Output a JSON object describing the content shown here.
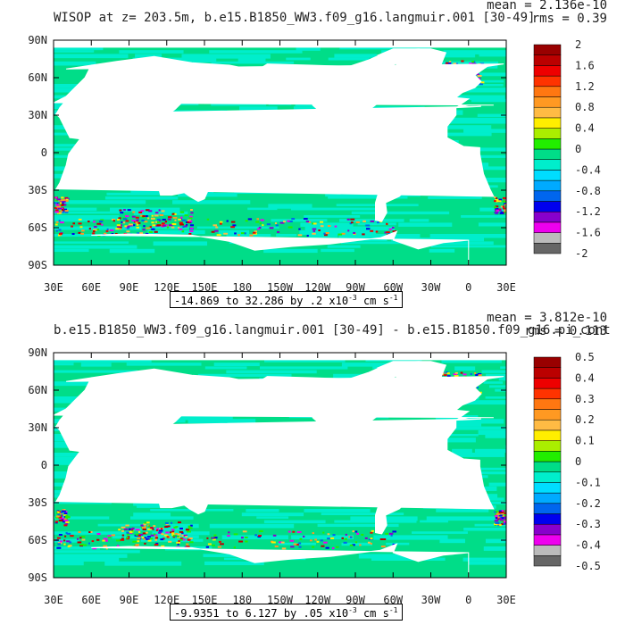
{
  "panels": [
    {
      "title": "WISOP at z= 203.5m, b.e15.B1850_WW3.f09_g16.langmuir.001 [30-49]",
      "mean": "mean = 2.136e-10",
      "rms": "rms = 0.39",
      "range_text": "-14.869 to 32.286 by .2 x10",
      "range_exp": "-3",
      "range_unit": "cm s",
      "range_unit_exp": "-1"
    },
    {
      "title": "b.e15.B1850_WW3.f09_g16.langmuir.001 [30-49] - b.e15.B1850.f09_g16.pi_cont",
      "mean": "mean = 3.812e-10",
      "rms": "rms = 0.113",
      "range_text": "-9.9351 to 6.127 by .05 x10",
      "range_exp": "-3",
      "range_unit": "cm s",
      "range_unit_exp": "-1"
    }
  ],
  "chart_data": [
    {
      "type": "heatmap",
      "variable": "WISOP",
      "depth": "z= 203.5m",
      "x_tick_labels": [
        "30E",
        "60E",
        "90E",
        "120E",
        "150E",
        "180",
        "150W",
        "120W",
        "90W",
        "60W",
        "30W",
        "0",
        "30E"
      ],
      "y_tick_labels": [
        "90N",
        "60N",
        "30N",
        "0",
        "30S",
        "60S",
        "90S"
      ],
      "xlim": [
        30,
        390
      ],
      "ylim": [
        -90,
        90
      ],
      "colorbar_labels": [
        "2",
        "1.6",
        "1.2",
        "0.8",
        "0.4",
        "0",
        "-0.4",
        "-0.8",
        "-1.2",
        "-1.6",
        "-2"
      ],
      "colorbar_range": [
        -2,
        2
      ],
      "colors": [
        "#666666",
        "#bbbbbb",
        "#ee00ee",
        "#8800cc",
        "#0000ee",
        "#0066ee",
        "#00aaff",
        "#00ddff",
        "#00eecc",
        "#00dd88",
        "#22ee00",
        "#aaee00",
        "#ffee00",
        "#ffbb44",
        "#ff9922",
        "#ff7711",
        "#ff3300",
        "#ee0000",
        "#bb0000",
        "#990000"
      ],
      "min": -14.869,
      "max": 32.286,
      "interval": 0.2
    },
    {
      "type": "heatmap",
      "variable": "difference",
      "x_tick_labels": [
        "30E",
        "60E",
        "90E",
        "120E",
        "150E",
        "180",
        "150W",
        "120W",
        "90W",
        "60W",
        "30W",
        "0",
        "30E"
      ],
      "y_tick_labels": [
        "90N",
        "60N",
        "30N",
        "0",
        "30S",
        "60S",
        "90S"
      ],
      "xlim": [
        30,
        390
      ],
      "ylim": [
        -90,
        90
      ],
      "colorbar_labels": [
        "0.5",
        "0.4",
        "0.3",
        "0.2",
        "0.1",
        "0",
        "-0.1",
        "-0.2",
        "-0.3",
        "-0.4",
        "-0.5"
      ],
      "colorbar_range": [
        -0.5,
        0.5
      ],
      "colors": [
        "#666666",
        "#bbbbbb",
        "#ee00ee",
        "#8800cc",
        "#0000ee",
        "#0066ee",
        "#00aaff",
        "#00ddff",
        "#00eecc",
        "#00dd88",
        "#22ee00",
        "#aaee00",
        "#ffee00",
        "#ffbb44",
        "#ff9922",
        "#ff7711",
        "#ff3300",
        "#ee0000",
        "#bb0000",
        "#990000"
      ],
      "min": -9.9351,
      "max": 6.127,
      "interval": 0.05
    }
  ]
}
